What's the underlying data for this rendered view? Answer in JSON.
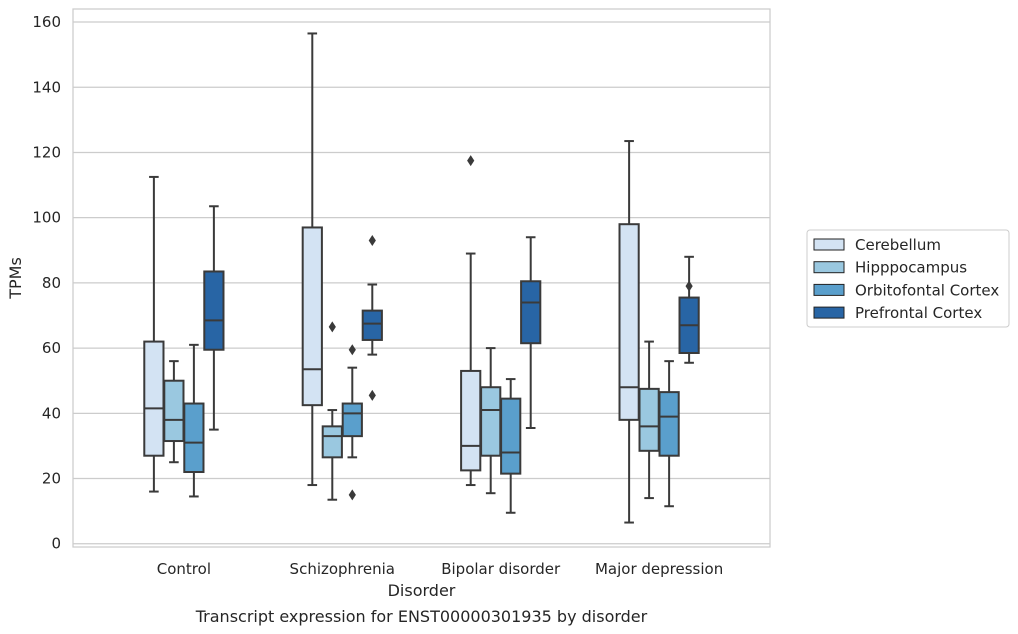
{
  "chart_data": {
    "type": "box",
    "xlabel": "Disorder",
    "ylabel": "TPMs",
    "caption": "Transcript expression for ENST00000301935 by disorder",
    "ylim": [
      -1,
      164
    ],
    "y_ticks": [
      0,
      20,
      40,
      60,
      80,
      100,
      120,
      140,
      160
    ],
    "grid": "horizontal",
    "legend_position": "right",
    "categories": [
      "Control",
      "Schizophrenia",
      "Bipolar disorder",
      "Major depression"
    ],
    "series": [
      {
        "name": "Cerebellum",
        "color": "#d3e3f3",
        "boxes": [
          {
            "whisker_low": 16,
            "q1": 27,
            "median": 41.5,
            "q3": 62,
            "whisker_high": 112.5,
            "outliers": []
          },
          {
            "whisker_low": 18,
            "q1": 42.5,
            "median": 53.5,
            "q3": 97,
            "whisker_high": 156.5,
            "outliers": []
          },
          {
            "whisker_low": 18,
            "q1": 22.5,
            "median": 30,
            "q3": 53,
            "whisker_high": 89,
            "outliers": [
              117.5
            ]
          },
          {
            "whisker_low": 6.5,
            "q1": 38,
            "median": 48,
            "q3": 98,
            "whisker_high": 123.5,
            "outliers": []
          }
        ]
      },
      {
        "name": "Hipppocampus",
        "color": "#9ac8e0",
        "boxes": [
          {
            "whisker_low": 25,
            "q1": 31.5,
            "median": 38,
            "q3": 50,
            "whisker_high": 56,
            "outliers": []
          },
          {
            "whisker_low": 13.5,
            "q1": 26.5,
            "median": 33,
            "q3": 36,
            "whisker_high": 41,
            "outliers": [
              66.5
            ]
          },
          {
            "whisker_low": 15.5,
            "q1": 27,
            "median": 41,
            "q3": 48,
            "whisker_high": 60,
            "outliers": []
          },
          {
            "whisker_low": 14,
            "q1": 28.5,
            "median": 36,
            "q3": 47.5,
            "whisker_high": 62,
            "outliers": []
          }
        ]
      },
      {
        "name": "Orbitofontal Cortex",
        "color": "#5a9fcc",
        "boxes": [
          {
            "whisker_low": 14.5,
            "q1": 22,
            "median": 31,
            "q3": 43,
            "whisker_high": 61,
            "outliers": []
          },
          {
            "whisker_low": 26.5,
            "q1": 33,
            "median": 40,
            "q3": 43,
            "whisker_high": 54,
            "outliers": [
              59.5,
              15
            ]
          },
          {
            "whisker_low": 9.5,
            "q1": 21.5,
            "median": 28,
            "q3": 44.5,
            "whisker_high": 50.5,
            "outliers": []
          },
          {
            "whisker_low": 11.5,
            "q1": 27,
            "median": 39,
            "q3": 46.5,
            "whisker_high": 56,
            "outliers": []
          }
        ]
      },
      {
        "name": "Prefrontal Cortex",
        "color": "#2865a5",
        "boxes": [
          {
            "whisker_low": 35,
            "q1": 59.5,
            "median": 68.5,
            "q3": 83.5,
            "whisker_high": 103.5,
            "outliers": []
          },
          {
            "whisker_low": 58,
            "q1": 62.5,
            "median": 67.5,
            "q3": 71.5,
            "whisker_high": 79.5,
            "outliers": [
              93,
              45.5
            ]
          },
          {
            "whisker_low": 35.5,
            "q1": 61.5,
            "median": 74,
            "q3": 80.5,
            "whisker_high": 94,
            "outliers": []
          },
          {
            "whisker_low": 55.5,
            "q1": 58.5,
            "median": 67,
            "q3": 75.5,
            "whisker_high": 88,
            "outliers": [
              79
            ]
          }
        ]
      }
    ]
  }
}
